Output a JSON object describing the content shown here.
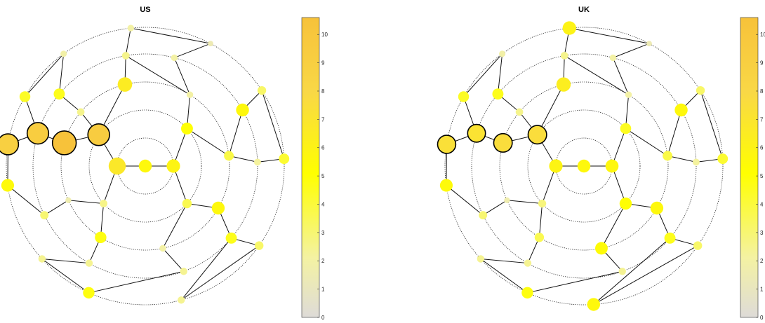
{
  "colorbar": {
    "ticks": [
      "0",
      "1",
      "2",
      "3",
      "4",
      "5",
      "6",
      "7",
      "8",
      "9",
      "10"
    ],
    "min": 0,
    "max": 10.6,
    "colors": [
      "#dedbd8",
      "#f4f2a2",
      "#ffff00",
      "#f9d846",
      "#f7c23a"
    ]
  },
  "panels": [
    {
      "title": "US",
      "nodes": [
        {
          "ring": 0,
          "angle": 0,
          "value": 5.6
        },
        {
          "ring": 1,
          "angle": 0,
          "value": 5.9
        },
        {
          "ring": 1,
          "angle": 180,
          "value": 6.8
        },
        {
          "ring": 2,
          "angle": 42,
          "value": 5.0
        },
        {
          "ring": 2,
          "angle": 146,
          "value": 9.4
        },
        {
          "ring": 2,
          "angle": 222,
          "value": 2.6
        },
        {
          "ring": 2,
          "angle": 318,
          "value": 3.6
        },
        {
          "ring": 3,
          "angle": 7,
          "value": 3.8
        },
        {
          "ring": 3,
          "angle": 58,
          "value": 2.0
        },
        {
          "ring": 3,
          "angle": 104,
          "value": 6.5
        },
        {
          "ring": 3,
          "angle": 140,
          "value": 2.5
        },
        {
          "ring": 3,
          "angle": 164,
          "value": 10.6
        },
        {
          "ring": 3,
          "angle": 204,
          "value": 1.6
        },
        {
          "ring": 3,
          "angle": 238,
          "value": 4.8
        },
        {
          "ring": 3,
          "angle": 282,
          "value": 2.0
        },
        {
          "ring": 3,
          "angle": 330,
          "value": 5.6
        },
        {
          "ring": 4,
          "angle": 2,
          "value": 2.2
        },
        {
          "ring": 4,
          "angle": 30,
          "value": 5.6
        },
        {
          "ring": 4,
          "angle": 75,
          "value": 2.0
        },
        {
          "ring": 4,
          "angle": 100,
          "value": 2.5
        },
        {
          "ring": 4,
          "angle": 140,
          "value": 4.6
        },
        {
          "ring": 4,
          "angle": 163,
          "value": 9.3
        },
        {
          "ring": 4,
          "angle": 206,
          "value": 3.0
        },
        {
          "ring": 4,
          "angle": 240,
          "value": 2.4
        },
        {
          "ring": 4,
          "angle": 290,
          "value": 2.4
        },
        {
          "ring": 4,
          "angle": 320,
          "value": 4.6
        },
        {
          "ring": 5,
          "angle": 3,
          "value": 4.2
        },
        {
          "ring": 5,
          "angle": 33,
          "value": 3.2
        },
        {
          "ring": 5,
          "angle": 62,
          "value": 1.4
        },
        {
          "ring": 5,
          "angle": 96,
          "value": 2.0
        },
        {
          "ring": 5,
          "angle": 126,
          "value": 1.9
        },
        {
          "ring": 5,
          "angle": 150,
          "value": 4.4
        },
        {
          "ring": 5,
          "angle": 171,
          "value": 9.0
        },
        {
          "ring": 5,
          "angle": 188,
          "value": 5.5
        },
        {
          "ring": 5,
          "angle": 222,
          "value": 2.4
        },
        {
          "ring": 5,
          "angle": 246,
          "value": 4.8
        },
        {
          "ring": 5,
          "angle": 285,
          "value": 2.4
        },
        {
          "ring": 5,
          "angle": 325,
          "value": 3.2
        }
      ]
    },
    {
      "title": "UK",
      "nodes": [
        {
          "ring": 0,
          "angle": 0,
          "value": 5.6
        },
        {
          "ring": 1,
          "angle": 0,
          "value": 5.7
        },
        {
          "ring": 1,
          "angle": 180,
          "value": 5.9
        },
        {
          "ring": 2,
          "angle": 42,
          "value": 4.5
        },
        {
          "ring": 2,
          "angle": 146,
          "value": 7.6
        },
        {
          "ring": 2,
          "angle": 222,
          "value": 2.8
        },
        {
          "ring": 2,
          "angle": 318,
          "value": 5.2
        },
        {
          "ring": 3,
          "angle": 7,
          "value": 3.8
        },
        {
          "ring": 3,
          "angle": 58,
          "value": 2.0
        },
        {
          "ring": 3,
          "angle": 104,
          "value": 6.4
        },
        {
          "ring": 3,
          "angle": 140,
          "value": 2.5
        },
        {
          "ring": 3,
          "angle": 164,
          "value": 7.6
        },
        {
          "ring": 3,
          "angle": 204,
          "value": 1.6
        },
        {
          "ring": 3,
          "angle": 238,
          "value": 3.6
        },
        {
          "ring": 3,
          "angle": 282,
          "value": 5.4
        },
        {
          "ring": 3,
          "angle": 330,
          "value": 5.6
        },
        {
          "ring": 4,
          "angle": 2,
          "value": 2.2
        },
        {
          "ring": 4,
          "angle": 30,
          "value": 5.6
        },
        {
          "ring": 4,
          "angle": 75,
          "value": 2.0
        },
        {
          "ring": 4,
          "angle": 100,
          "value": 2.5
        },
        {
          "ring": 4,
          "angle": 140,
          "value": 4.6
        },
        {
          "ring": 4,
          "angle": 163,
          "value": 7.2
        },
        {
          "ring": 4,
          "angle": 206,
          "value": 3.0
        },
        {
          "ring": 4,
          "angle": 240,
          "value": 2.4
        },
        {
          "ring": 4,
          "angle": 290,
          "value": 2.4
        },
        {
          "ring": 4,
          "angle": 320,
          "value": 4.6
        },
        {
          "ring": 5,
          "angle": 3,
          "value": 4.2
        },
        {
          "ring": 5,
          "angle": 33,
          "value": 3.2
        },
        {
          "ring": 5,
          "angle": 62,
          "value": 1.4
        },
        {
          "ring": 5,
          "angle": 96,
          "value": 6.0
        },
        {
          "ring": 5,
          "angle": 126,
          "value": 1.9
        },
        {
          "ring": 5,
          "angle": 150,
          "value": 4.4
        },
        {
          "ring": 5,
          "angle": 171,
          "value": 7.4
        },
        {
          "ring": 5,
          "angle": 188,
          "value": 5.5
        },
        {
          "ring": 5,
          "angle": 222,
          "value": 2.4
        },
        {
          "ring": 5,
          "angle": 246,
          "value": 4.8
        },
        {
          "ring": 5,
          "angle": 274,
          "value": 5.6
        },
        {
          "ring": 5,
          "angle": 325,
          "value": 3.2
        }
      ]
    }
  ],
  "edges": [
    [
      0,
      1
    ],
    [
      0,
      2
    ],
    [
      1,
      3
    ],
    [
      1,
      6
    ],
    [
      2,
      4
    ],
    [
      2,
      5
    ],
    [
      3,
      7
    ],
    [
      3,
      8
    ],
    [
      4,
      10
    ],
    [
      4,
      11
    ],
    [
      4,
      9
    ],
    [
      5,
      12
    ],
    [
      5,
      13
    ],
    [
      6,
      14
    ],
    [
      6,
      15
    ],
    [
      7,
      16
    ],
    [
      7,
      17
    ],
    [
      8,
      18
    ],
    [
      8,
      19
    ],
    [
      9,
      19
    ],
    [
      10,
      20
    ],
    [
      11,
      21
    ],
    [
      12,
      22
    ],
    [
      13,
      23
    ],
    [
      14,
      24
    ],
    [
      15,
      25
    ],
    [
      16,
      26
    ],
    [
      17,
      27
    ],
    [
      18,
      28
    ],
    [
      19,
      29
    ],
    [
      20,
      30
    ],
    [
      21,
      31
    ],
    [
      21,
      32
    ],
    [
      22,
      33
    ],
    [
      23,
      34
    ],
    [
      24,
      35
    ],
    [
      25,
      36
    ],
    [
      25,
      37
    ],
    [
      26,
      27
    ],
    [
      28,
      29
    ],
    [
      30,
      31
    ],
    [
      32,
      33
    ],
    [
      34,
      35
    ],
    [
      36,
      37
    ]
  ]
}
